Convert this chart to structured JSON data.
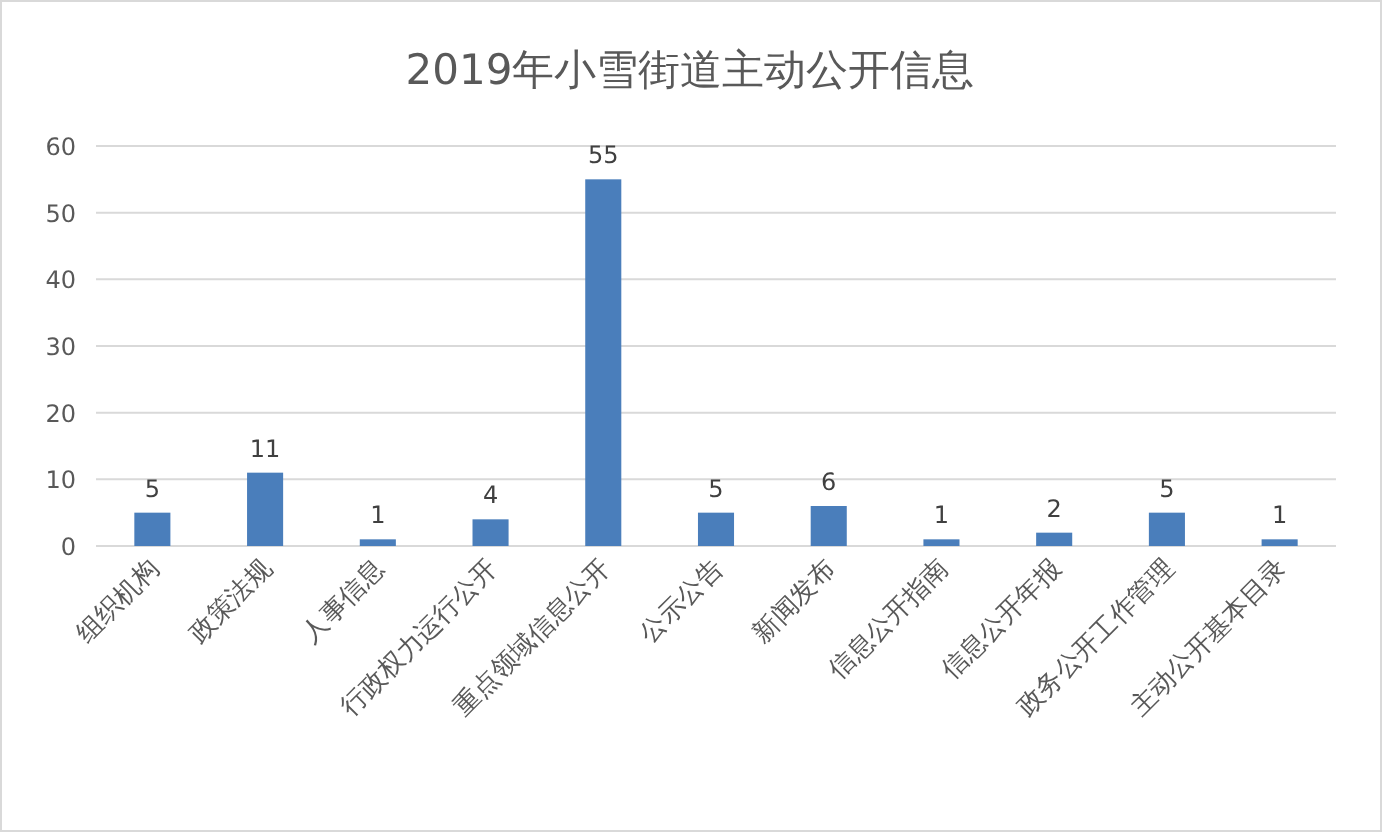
{
  "chart_data": {
    "type": "bar",
    "title": "2019年小雪街道主动公开信息",
    "categories": [
      "组织机构",
      "政策法规",
      "人事信息",
      "行政权力运行公开",
      "重点领域信息公开",
      "公示公告",
      "新闻发布",
      "信息公开指南",
      "信息公开年报",
      "政务公开工作管理",
      "主动公开基本目录"
    ],
    "values": [
      5,
      11,
      1,
      4,
      55,
      5,
      6,
      1,
      2,
      5,
      1
    ],
    "color": "#4a7ebb",
    "ylim": [
      0,
      60
    ],
    "yticks": [
      0,
      10,
      20,
      30,
      40,
      50,
      60
    ],
    "grid": "y",
    "data_labels": true
  }
}
